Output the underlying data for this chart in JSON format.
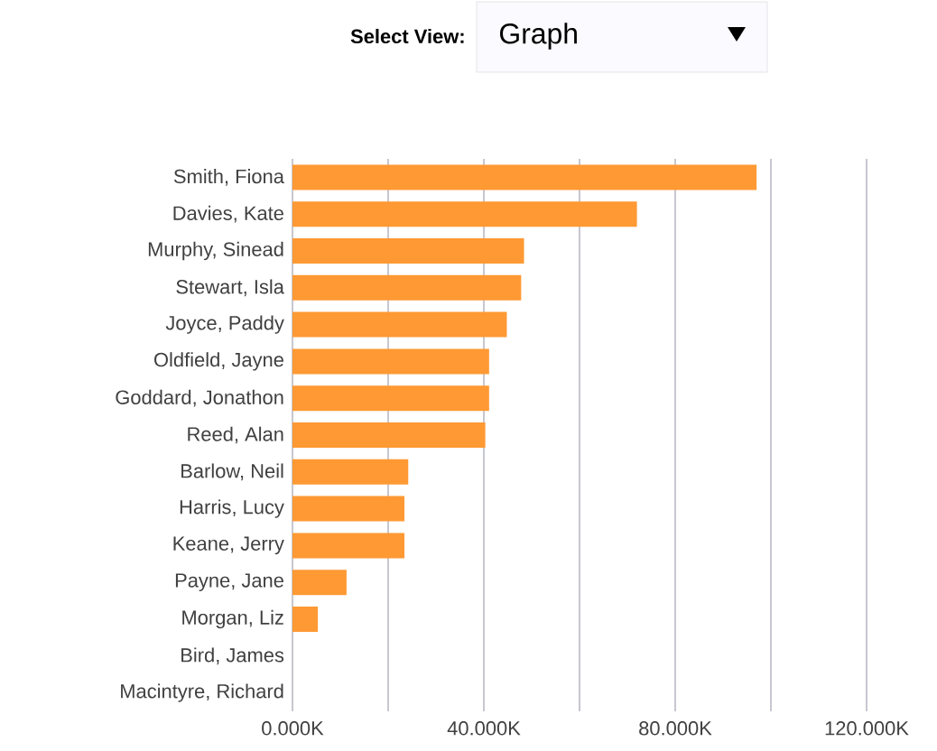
{
  "chart_data": {
    "type": "bar",
    "orientation": "horizontal",
    "categories": [
      "Smith, Fiona",
      "Davies, Kate",
      "Murphy, Sinead",
      "Stewart, Isla",
      "Joyce, Paddy",
      "Oldfield, Jayne",
      "Goddard, Jonathon",
      "Reed, Alan",
      "Barlow, Neil",
      "Harris, Lucy",
      "Keane, Jerry",
      "Payne, Jane",
      "Morgan, Liz",
      "Bird, James",
      "Macintyre, Richard"
    ],
    "values": [
      97000,
      72000,
      48400,
      47800,
      44800,
      41100,
      41100,
      40300,
      24200,
      23400,
      23400,
      11300,
      5300,
      0,
      0
    ],
    "color": "#ff9933",
    "xlim": [
      0,
      120000
    ],
    "xticks": [
      {
        "value": 0,
        "label": "0.000K"
      },
      {
        "value": 20000,
        "label": null
      },
      {
        "value": 40000,
        "label": "40.000K"
      },
      {
        "value": 60000,
        "label": null
      },
      {
        "value": 80000,
        "label": "80.000K"
      },
      {
        "value": 100000,
        "label": null
      },
      {
        "value": 120000,
        "label": "120.000K"
      }
    ],
    "grid": "x",
    "annotations": [
      "Select View:",
      "Graph"
    ]
  }
}
